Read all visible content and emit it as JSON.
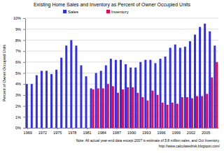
{
  "chart_data": {
    "type": "bar",
    "title": "Existing Home Sales and Inventory as Percent of Owner Occupied Units",
    "ylabel": "Percent of Owner Occupied Units",
    "annotations": [
      "Note: All actual year-end data except 2007 is estimate of 5.8 million sales, and Oct Inventory.",
      "http://www.calculatedrisk.blogspot.com/"
    ],
    "categories": [
      "1969",
      null,
      null,
      "1972",
      null,
      null,
      "1975",
      null,
      null,
      "1978",
      null,
      null,
      "1981",
      null,
      null,
      "1984",
      null,
      null,
      "1987",
      null,
      null,
      "1990",
      null,
      null,
      "1993",
      null,
      null,
      "1996",
      null,
      null,
      "1999",
      null,
      null,
      "2002",
      null,
      null,
      "2005",
      null,
      null
    ],
    "series": [
      {
        "name": "Sales",
        "color": "#2f2ff0",
        "values": [
          4.0,
          4.0,
          4.8,
          5.2,
          5.2,
          4.9,
          5.3,
          6.4,
          7.5,
          8.0,
          7.5,
          5.7,
          4.7,
          3.6,
          5.0,
          5.2,
          5.7,
          6.3,
          6.2,
          6.2,
          5.8,
          5.5,
          5.5,
          6.0,
          6.2,
          6.2,
          5.9,
          6.3,
          6.5,
          7.3,
          7.6,
          7.3,
          7.4,
          7.9,
          8.5,
          9.2,
          9.5,
          8.8,
          7.5
        ]
      },
      {
        "name": "Inventory",
        "color": "#e8084a",
        "values": [
          null,
          null,
          null,
          null,
          null,
          null,
          null,
          null,
          null,
          null,
          null,
          null,
          null,
          3.5,
          3.6,
          3.6,
          4.0,
          3.8,
          3.2,
          3.5,
          3.7,
          3.7,
          3.2,
          2.8,
          2.5,
          3.4,
          3.0,
          2.3,
          2.1,
          2.3,
          2.2,
          2.8,
          2.8,
          2.7,
          2.9,
          2.9,
          3.1,
          4.6,
          6.0
        ]
      }
    ],
    "ylim": [
      0,
      10
    ],
    "yticks": [
      {
        "value": 0,
        "label": "0%"
      },
      {
        "value": 1,
        "label": "1%"
      },
      {
        "value": 2,
        "label": "2%"
      },
      {
        "value": 3,
        "label": "3%"
      },
      {
        "value": 4,
        "label": "4%"
      },
      {
        "value": 5,
        "label": "5%"
      },
      {
        "value": 6,
        "label": "6%"
      },
      {
        "value": 7,
        "label": "7%"
      },
      {
        "value": 8,
        "label": "8%"
      },
      {
        "value": 9,
        "label": "9%"
      },
      {
        "value": 10,
        "label": "10%"
      }
    ],
    "grid": true,
    "legend": "top"
  }
}
